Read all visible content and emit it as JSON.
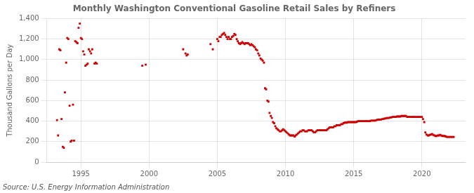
{
  "chart_data": {
    "type": "scatter",
    "title": "Monthly Washington Conventional Gasoline Retail Sales by Refiners",
    "ylabel": "Thousand Gallons per Day",
    "annotations": [
      "Source: U.S. Energy Information Administration"
    ],
    "color": "#cc0000",
    "marker": "square",
    "grid": true,
    "xlim": [
      1992.5,
      2023.2
    ],
    "ylim": [
      0,
      1400
    ],
    "xticks": [
      1995,
      2000,
      2005,
      2010,
      2015,
      2020
    ],
    "yticks": [
      0,
      200,
      400,
      600,
      800,
      {
        "value": 1000,
        "label": "1,000"
      },
      {
        "value": 1200,
        "label": "1,200"
      },
      {
        "value": 1400,
        "label": "1,400"
      }
    ],
    "x": [
      1993.25,
      1993.33,
      1993.42,
      1993.5,
      1993.58,
      1993.67,
      1993.75,
      1993.83,
      1993.92,
      1994.0,
      1994.08,
      1994.17,
      1994.25,
      1994.33,
      1994.42,
      1994.5,
      1994.58,
      1994.67,
      1994.75,
      1994.83,
      1994.92,
      1995.0,
      1995.08,
      1995.17,
      1995.25,
      1995.33,
      1995.42,
      1995.5,
      1995.58,
      1995.67,
      1995.75,
      1995.83,
      1996.0,
      1996.08,
      1996.17,
      1999.5,
      1999.75,
      2002.5,
      2002.67,
      2002.75,
      2002.83,
      2004.5,
      2004.67,
      2005.0,
      2005.08,
      2005.17,
      2005.25,
      2005.33,
      2005.42,
      2005.5,
      2005.58,
      2005.67,
      2005.75,
      2005.83,
      2005.92,
      2006.0,
      2006.08,
      2006.17,
      2006.25,
      2006.33,
      2006.42,
      2006.5,
      2006.58,
      2006.67,
      2006.75,
      2006.83,
      2006.92,
      2007.0,
      2007.08,
      2007.17,
      2007.25,
      2007.33,
      2007.42,
      2007.5,
      2007.58,
      2007.67,
      2007.75,
      2007.83,
      2007.92,
      2008.0,
      2008.08,
      2008.17,
      2008.25,
      2008.33,
      2008.42,
      2008.5,
      2008.58,
      2008.67,
      2008.75,
      2008.83,
      2008.92,
      2009.0,
      2009.08,
      2009.17,
      2009.25,
      2009.33,
      2009.42,
      2009.5,
      2009.58,
      2009.67,
      2009.75,
      2009.83,
      2009.92,
      2010.0,
      2010.08,
      2010.17,
      2010.25,
      2010.33,
      2010.42,
      2010.5,
      2010.58,
      2010.67,
      2010.75,
      2010.83,
      2010.92,
      2011.0,
      2011.08,
      2011.17,
      2011.25,
      2011.33,
      2011.42,
      2011.5,
      2011.58,
      2011.67,
      2011.75,
      2011.83,
      2011.92,
      2012.0,
      2012.08,
      2012.17,
      2012.25,
      2012.33,
      2012.42,
      2012.5,
      2012.58,
      2012.67,
      2012.75,
      2012.83,
      2012.92,
      2013.0,
      2013.08,
      2013.17,
      2013.25,
      2013.33,
      2013.42,
      2013.5,
      2013.58,
      2013.67,
      2013.75,
      2013.83,
      2013.92,
      2014.0,
      2014.08,
      2014.17,
      2014.25,
      2014.33,
      2014.42,
      2014.5,
      2014.58,
      2014.67,
      2014.75,
      2014.83,
      2014.92,
      2015.0,
      2015.08,
      2015.17,
      2015.25,
      2015.33,
      2015.42,
      2015.5,
      2015.58,
      2015.67,
      2015.75,
      2015.83,
      2015.92,
      2016.0,
      2016.08,
      2016.17,
      2016.25,
      2016.33,
      2016.42,
      2016.5,
      2016.58,
      2016.67,
      2016.75,
      2016.83,
      2016.92,
      2017.0,
      2017.08,
      2017.17,
      2017.25,
      2017.33,
      2017.42,
      2017.5,
      2017.58,
      2017.67,
      2017.75,
      2017.83,
      2017.92,
      2018.0,
      2018.08,
      2018.17,
      2018.25,
      2018.33,
      2018.42,
      2018.5,
      2018.58,
      2018.67,
      2018.75,
      2018.83,
      2018.92,
      2019.0,
      2019.08,
      2019.17,
      2019.25,
      2019.33,
      2019.42,
      2019.5,
      2019.58,
      2019.67,
      2019.75,
      2019.83,
      2019.92,
      2020.0,
      2020.08,
      2020.17,
      2020.25,
      2020.33,
      2020.42,
      2020.5,
      2020.58,
      2020.67,
      2020.75,
      2020.83,
      2020.92,
      2021.0,
      2021.08,
      2021.17,
      2021.25,
      2021.33,
      2021.42,
      2021.5,
      2021.58,
      2021.67,
      2021.75,
      2021.83,
      2021.92,
      2022.0,
      2022.08,
      2022.17,
      2022.25,
      2022.33
    ],
    "values": [
      410,
      260,
      1100,
      1090,
      420,
      150,
      140,
      680,
      970,
      1210,
      1200,
      550,
      200,
      210,
      560,
      210,
      1180,
      1170,
      1160,
      1310,
      1350,
      1210,
      1200,
      1080,
      1050,
      940,
      950,
      960,
      1100,
      1080,
      1060,
      1100,
      960,
      970,
      960,
      940,
      950,
      1100,
      1060,
      1040,
      1050,
      1150,
      1100,
      1200,
      1180,
      1220,
      1220,
      1240,
      1250,
      1260,
      1240,
      1220,
      1200,
      1220,
      1200,
      1200,
      1220,
      1230,
      1250,
      1240,
      1200,
      1180,
      1160,
      1150,
      1160,
      1170,
      1160,
      1150,
      1160,
      1160,
      1160,
      1150,
      1140,
      1150,
      1140,
      1130,
      1120,
      1100,
      1090,
      1060,
      1040,
      1010,
      1000,
      990,
      970,
      720,
      710,
      600,
      590,
      480,
      450,
      430,
      390,
      380,
      350,
      330,
      320,
      310,
      300,
      300,
      310,
      320,
      310,
      300,
      290,
      280,
      270,
      260,
      260,
      260,
      260,
      250,
      260,
      270,
      280,
      290,
      300,
      300,
      310,
      310,
      300,
      300,
      300,
      310,
      310,
      310,
      310,
      300,
      290,
      290,
      300,
      310,
      310,
      310,
      310,
      310,
      310,
      310,
      310,
      310,
      320,
      330,
      340,
      340,
      340,
      340,
      350,
      350,
      360,
      360,
      360,
      360,
      370,
      370,
      380,
      385,
      385,
      385,
      390,
      390,
      390,
      390,
      390,
      390,
      390,
      390,
      395,
      400,
      400,
      400,
      400,
      400,
      400,
      400,
      400,
      400,
      400,
      400,
      405,
      405,
      405,
      405,
      405,
      410,
      415,
      415,
      415,
      415,
      420,
      420,
      425,
      425,
      430,
      430,
      430,
      435,
      435,
      440,
      440,
      440,
      440,
      445,
      445,
      445,
      445,
      450,
      450,
      450,
      450,
      450,
      440,
      440,
      440,
      440,
      440,
      440,
      440,
      440,
      440,
      440,
      440,
      440,
      440,
      440,
      420,
      390,
      290,
      270,
      260,
      260,
      265,
      270,
      275,
      265,
      260,
      255,
      255,
      260,
      260,
      265,
      260,
      255,
      255,
      255,
      250,
      245,
      245,
      245,
      245,
      245,
      245,
      245
    ]
  }
}
